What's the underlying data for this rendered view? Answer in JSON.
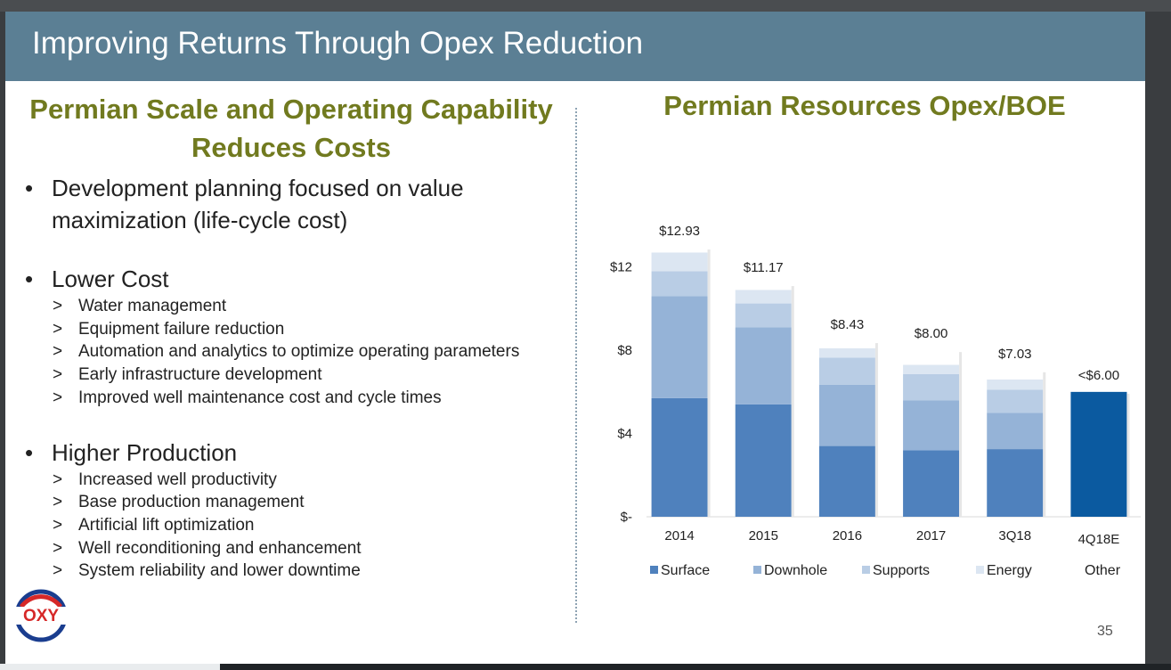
{
  "header": {
    "title": "Improving Returns Through Opex Reduction"
  },
  "left": {
    "heading": "Permian Scale and Operating Capability Reduces Costs",
    "groups": [
      {
        "title": "Development planning focused on value maximization (life-cycle cost)",
        "items": []
      },
      {
        "title": "Lower Cost",
        "items": [
          "Water management",
          "Equipment failure reduction",
          "Automation and analytics to optimize operating parameters",
          "Early infrastructure development",
          "Improved well maintenance cost and cycle times"
        ]
      },
      {
        "title": "Higher Production",
        "items": [
          "Increased well productivity",
          "Base production management",
          "Artificial lift optimization",
          "Well reconditioning and enhancement",
          "System reliability and lower downtime"
        ]
      }
    ]
  },
  "right": {
    "heading": "Permian Resources Opex/BOE"
  },
  "chart_data": {
    "type": "bar",
    "stacked": true,
    "categories": [
      "2014",
      "2015",
      "2016",
      "2017",
      "3Q18",
      "4Q18E"
    ],
    "series": [
      {
        "name": "Surface",
        "color": "#4f81bd",
        "values": [
          5.7,
          5.4,
          3.4,
          3.2,
          3.25,
          0
        ]
      },
      {
        "name": "Downhole",
        "color": "#95b3d7",
        "values": [
          4.9,
          3.7,
          2.95,
          2.4,
          1.75,
          0
        ]
      },
      {
        "name": "Supports",
        "color": "#b9cde5",
        "values": [
          1.2,
          1.15,
          1.3,
          1.25,
          1.1,
          0
        ]
      },
      {
        "name": "Energy",
        "color": "#dce6f2",
        "values": [
          0.9,
          0.65,
          0.45,
          0.45,
          0.5,
          0
        ]
      },
      {
        "name": "Other",
        "color": "#ffffff",
        "values": [
          0.23,
          0.27,
          0.33,
          0.7,
          0.43,
          6.0
        ]
      }
    ],
    "highlight": {
      "category": "4Q18E",
      "color": "#0b5aa0",
      "value": 6.0
    },
    "totals": [
      "$12.93",
      "$11.17",
      "$8.43",
      "$8.00",
      "$7.03",
      "<$6.00"
    ],
    "ytick_labels": [
      "$-",
      "$4",
      "$8",
      "$12"
    ],
    "yticks": [
      0,
      4,
      8,
      12
    ],
    "ylim": [
      0,
      14
    ],
    "legend": [
      "Surface",
      "Downhole",
      "Supports",
      "Energy",
      "Other"
    ],
    "legend_position": "bottom",
    "grid": false
  },
  "footer": {
    "page_number": "35"
  },
  "logo": {
    "text": "OXY"
  }
}
